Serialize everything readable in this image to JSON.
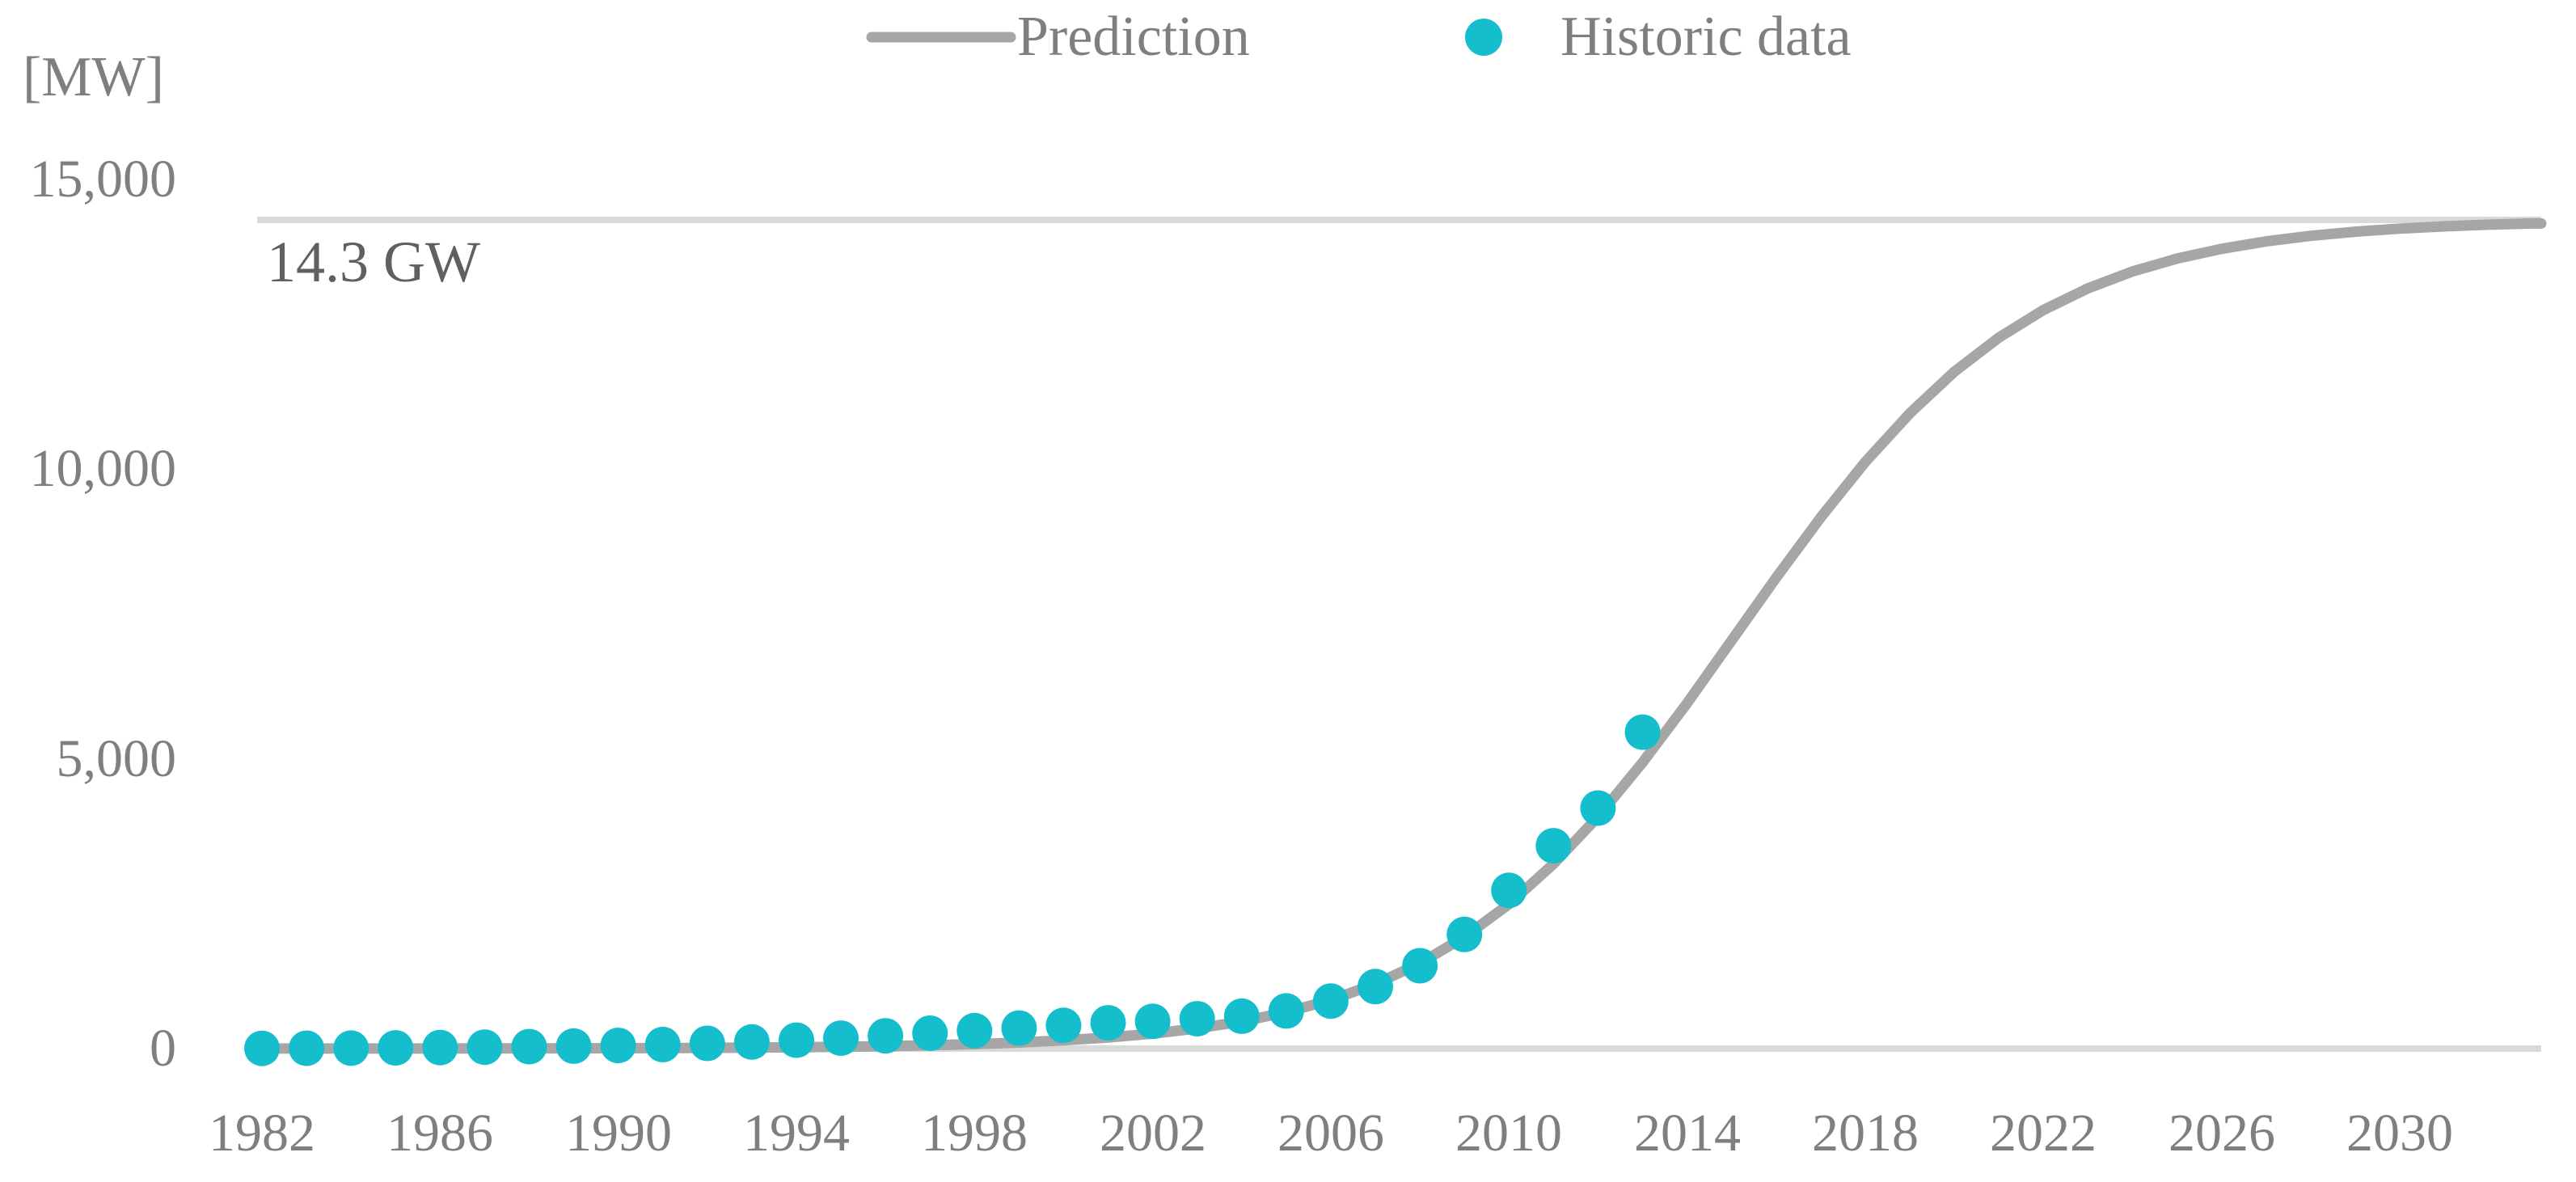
{
  "page": {
    "background": "#ffffff"
  },
  "colors": {
    "prediction_line": "#a6a6a6",
    "historic_dot": "#14becd",
    "gridline": "#d9d9d9",
    "tick_text": "#7f7f7f",
    "annotation_text": "#606060"
  },
  "legend": {
    "items": [
      {
        "label": "Prediction",
        "marker": "line",
        "color": "#a6a6a6"
      },
      {
        "label": "Historic data",
        "marker": "dot",
        "color": "#14becd"
      }
    ]
  },
  "chart_data": {
    "type": "line",
    "title": "",
    "xlabel": "",
    "ylabel": "[MW]",
    "unit_label": "[MW]",
    "annotation": {
      "text": "14.3 GW",
      "value_mw": 14300
    },
    "y_ticks": [
      {
        "label": "15,000",
        "value": 15000
      },
      {
        "label": "10,000",
        "value": 10000
      },
      {
        "label": "5,000",
        "value": 5000
      },
      {
        "label": "0",
        "value": 0
      }
    ],
    "x_ticks": [
      "1982",
      "1986",
      "1990",
      "1994",
      "1998",
      "2002",
      "2006",
      "2010",
      "2014",
      "2018",
      "2022",
      "2026",
      "2030"
    ],
    "x_range": [
      1982,
      2033
    ],
    "ylim": [
      0,
      18000
    ],
    "grid": "horizontal gridlines only at 0 and at 14,300 MW saturation level",
    "legend_position": "top-center",
    "series": [
      {
        "name": "Prediction",
        "type": "line",
        "color": "#a6a6a6",
        "x": [
          1982,
          1983,
          1984,
          1985,
          1986,
          1987,
          1988,
          1989,
          1990,
          1991,
          1992,
          1993,
          1994,
          1995,
          1996,
          1997,
          1998,
          1999,
          2000,
          2001,
          2002,
          2003,
          2004,
          2005,
          2006,
          2007,
          2008,
          2009,
          2010,
          2011,
          2012,
          2013,
          2014,
          2015,
          2016,
          2017,
          2018,
          2019,
          2020,
          2021,
          2022,
          2023,
          2024,
          2025,
          2026,
          2027,
          2028,
          2029,
          2030,
          2031,
          2032,
          2033
        ],
        "values": [
          1,
          1,
          1,
          1,
          2,
          3,
          4,
          5,
          7,
          9,
          12,
          17,
          23,
          31,
          42,
          57,
          77,
          105,
          142,
          191,
          258,
          349,
          468,
          628,
          839,
          1115,
          1471,
          1927,
          2492,
          3185,
          4000,
          4937,
          5960,
          7041,
          8125,
          9164,
          10121,
          10962,
          11679,
          12269,
          12744,
          13119,
          13410,
          13632,
          13801,
          13929,
          14025,
          14096,
          14149,
          14188,
          14217,
          14239
        ]
      },
      {
        "name": "Historic data",
        "type": "scatter",
        "color": "#14becd",
        "x": [
          1982,
          1983,
          1984,
          1985,
          1986,
          1987,
          1988,
          1989,
          1990,
          1991,
          1992,
          1993,
          1994,
          1995,
          1996,
          1997,
          1998,
          1999,
          2000,
          2001,
          2002,
          2003,
          2004,
          2005,
          2006,
          2007,
          2008,
          2009,
          2010,
          2011,
          2012,
          2013
        ],
        "values": [
          4,
          6,
          9,
          13,
          18,
          25,
          33,
          43,
          55,
          70,
          90,
          115,
          145,
          180,
          220,
          265,
          310,
          355,
          400,
          445,
          470,
          515,
          560,
          650,
          820,
          1070,
          1430,
          1970,
          2730,
          3500,
          4150,
          5460
        ]
      }
    ]
  }
}
